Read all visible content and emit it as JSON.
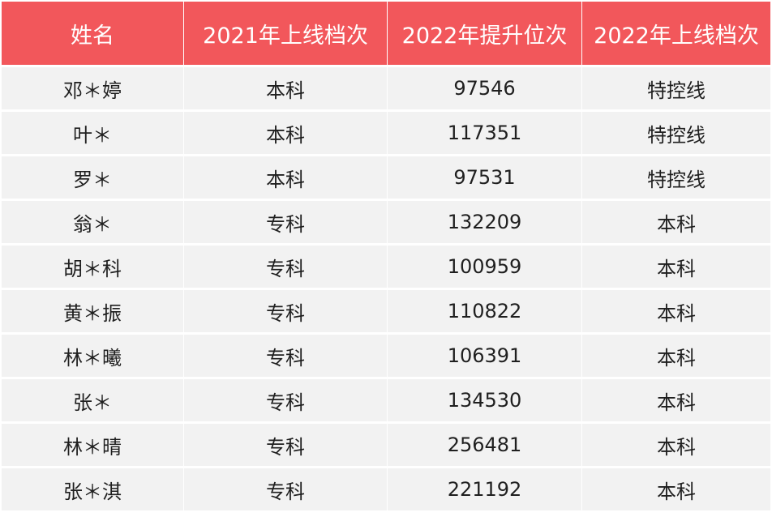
{
  "table": {
    "headers": [
      "姓名",
      "2021年上线档次",
      "2022年提升位次",
      "2022年上线档次"
    ],
    "rows": [
      [
        "邓＊婷",
        "本科",
        "97546",
        "特控线"
      ],
      [
        "叶＊",
        "本科",
        "117351",
        "特控线"
      ],
      [
        "罗＊",
        "本科",
        "97531",
        "特控线"
      ],
      [
        "翁＊",
        "专科",
        "132209",
        "本科"
      ],
      [
        "胡＊科",
        "专科",
        "100959",
        "本科"
      ],
      [
        "黄＊振",
        "专科",
        "110822",
        "本科"
      ],
      [
        "林＊曦",
        "专科",
        "106391",
        "本科"
      ],
      [
        "张＊",
        "专科",
        "134530",
        "本科"
      ],
      [
        "林＊晴",
        "专科",
        "256481",
        "本科"
      ],
      [
        "张＊淇",
        "专科",
        "221192",
        "本科"
      ]
    ]
  },
  "colors": {
    "header_bg": "#f2575b",
    "header_text": "#ffffff",
    "cell_bg": "#f2f2f2",
    "cell_text": "#1f1f1f"
  }
}
